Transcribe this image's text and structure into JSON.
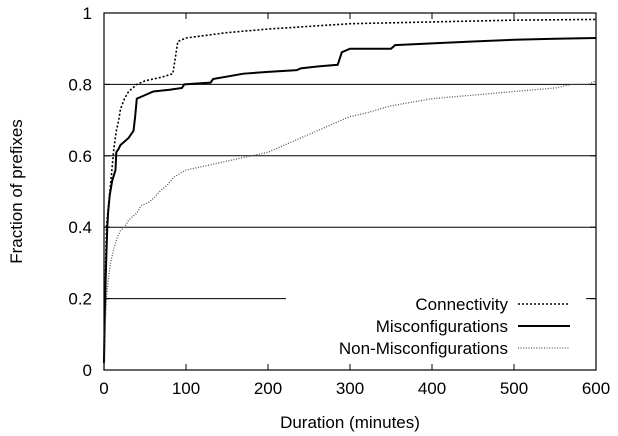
{
  "chart_data": {
    "type": "line",
    "title": "",
    "xlabel": "Duration (minutes)",
    "ylabel": "Fraction of prefixes",
    "xlim": [
      0,
      600
    ],
    "ylim": [
      0,
      1
    ],
    "x_ticks": [
      "0",
      "100",
      "200",
      "300",
      "400",
      "500",
      "600"
    ],
    "y_ticks": [
      "0",
      "0.2",
      "0.4",
      "0.6",
      "0.8",
      "1"
    ],
    "grid": "horizontal",
    "legend_position": "bottom-right",
    "series": [
      {
        "name": "Connectivity",
        "style": "dotted",
        "color": "#000000",
        "points": [
          [
            0,
            0.02
          ],
          [
            1,
            0.15
          ],
          [
            2,
            0.3
          ],
          [
            3,
            0.4
          ],
          [
            5,
            0.45
          ],
          [
            8,
            0.52
          ],
          [
            10,
            0.57
          ],
          [
            12,
            0.62
          ],
          [
            15,
            0.67
          ],
          [
            18,
            0.7
          ],
          [
            20,
            0.73
          ],
          [
            25,
            0.76
          ],
          [
            30,
            0.78
          ],
          [
            35,
            0.79
          ],
          [
            40,
            0.8
          ],
          [
            50,
            0.81
          ],
          [
            70,
            0.82
          ],
          [
            84,
            0.83
          ],
          [
            86,
            0.86
          ],
          [
            88,
            0.89
          ],
          [
            90,
            0.92
          ],
          [
            100,
            0.93
          ],
          [
            150,
            0.945
          ],
          [
            200,
            0.955
          ],
          [
            300,
            0.97
          ],
          [
            400,
            0.975
          ],
          [
            500,
            0.98
          ],
          [
            600,
            0.982
          ]
        ]
      },
      {
        "name": "Misconfigurations",
        "style": "solid",
        "color": "#000000",
        "points": [
          [
            0,
            0.02
          ],
          [
            1,
            0.15
          ],
          [
            2,
            0.25
          ],
          [
            3,
            0.33
          ],
          [
            4,
            0.4
          ],
          [
            5,
            0.44
          ],
          [
            7,
            0.49
          ],
          [
            10,
            0.53
          ],
          [
            14,
            0.56
          ],
          [
            15,
            0.61
          ],
          [
            18,
            0.62
          ],
          [
            20,
            0.63
          ],
          [
            30,
            0.65
          ],
          [
            36,
            0.67
          ],
          [
            38,
            0.71
          ],
          [
            40,
            0.76
          ],
          [
            45,
            0.765
          ],
          [
            50,
            0.77
          ],
          [
            55,
            0.775
          ],
          [
            60,
            0.78
          ],
          [
            80,
            0.785
          ],
          [
            95,
            0.79
          ],
          [
            98,
            0.8
          ],
          [
            130,
            0.805
          ],
          [
            133,
            0.815
          ],
          [
            170,
            0.83
          ],
          [
            200,
            0.835
          ],
          [
            235,
            0.84
          ],
          [
            240,
            0.845
          ],
          [
            260,
            0.85
          ],
          [
            285,
            0.855
          ],
          [
            290,
            0.89
          ],
          [
            300,
            0.9
          ],
          [
            350,
            0.9
          ],
          [
            355,
            0.91
          ],
          [
            400,
            0.915
          ],
          [
            450,
            0.92
          ],
          [
            500,
            0.925
          ],
          [
            550,
            0.928
          ],
          [
            600,
            0.93
          ]
        ]
      },
      {
        "name": "Non-Misconfigurations",
        "style": "dotted-fine",
        "color": "#555555",
        "points": [
          [
            0,
            0
          ],
          [
            1,
            0.1
          ],
          [
            3,
            0.2
          ],
          [
            5,
            0.25
          ],
          [
            8,
            0.3
          ],
          [
            12,
            0.34
          ],
          [
            16,
            0.37
          ],
          [
            20,
            0.39
          ],
          [
            25,
            0.4
          ],
          [
            30,
            0.42
          ],
          [
            40,
            0.44
          ],
          [
            45,
            0.46
          ],
          [
            55,
            0.47
          ],
          [
            60,
            0.48
          ],
          [
            68,
            0.5
          ],
          [
            78,
            0.52
          ],
          [
            85,
            0.54
          ],
          [
            100,
            0.56
          ],
          [
            120,
            0.57
          ],
          [
            140,
            0.58
          ],
          [
            160,
            0.59
          ],
          [
            180,
            0.6
          ],
          [
            200,
            0.61
          ],
          [
            220,
            0.63
          ],
          [
            240,
            0.65
          ],
          [
            260,
            0.67
          ],
          [
            280,
            0.69
          ],
          [
            300,
            0.71
          ],
          [
            320,
            0.72
          ],
          [
            350,
            0.74
          ],
          [
            400,
            0.76
          ],
          [
            450,
            0.77
          ],
          [
            500,
            0.78
          ],
          [
            550,
            0.79
          ],
          [
            570,
            0.8
          ],
          [
            590,
            0.8
          ],
          [
            600,
            0.81
          ]
        ]
      }
    ]
  }
}
